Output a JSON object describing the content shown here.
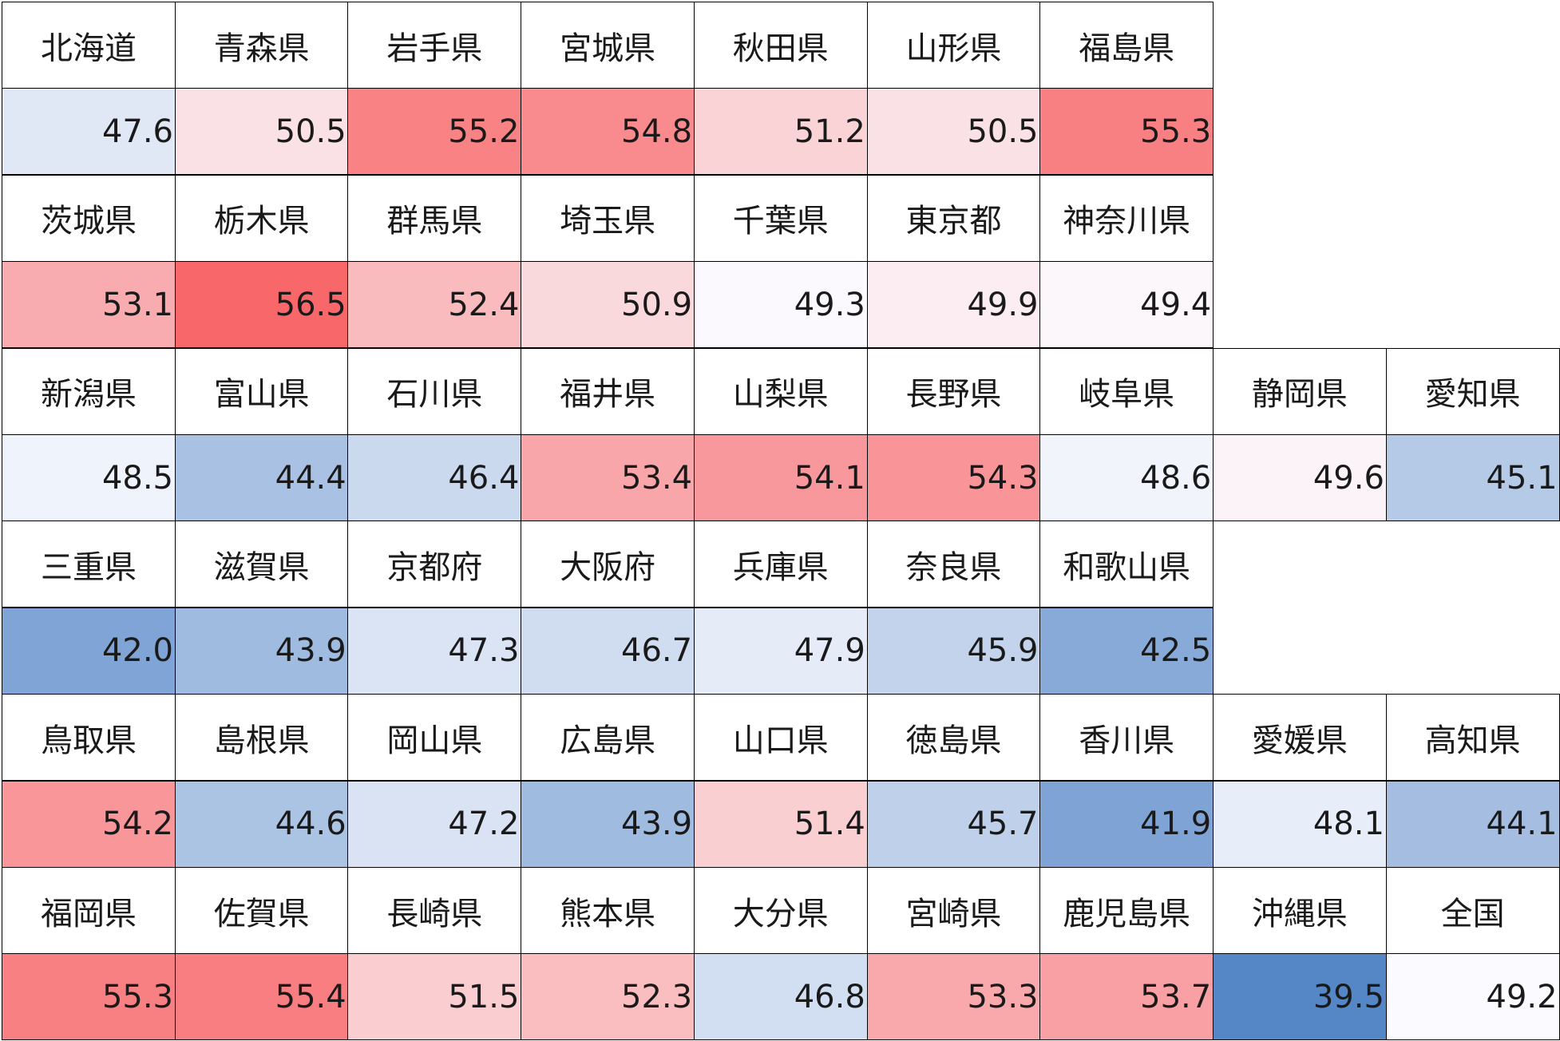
{
  "chart_data": {
    "type": "heatmap",
    "color_scale": {
      "low": "#5586c6",
      "mid": "#fbfbff",
      "high": "#f8686b",
      "midpoint": 49.2
    },
    "rows": [
      [
        {
          "name": "北海道",
          "value": "47.6"
        },
        {
          "name": "青森県",
          "value": "50.5"
        },
        {
          "name": "岩手県",
          "value": "55.2"
        },
        {
          "name": "宮城県",
          "value": "54.8"
        },
        {
          "name": "秋田県",
          "value": "51.2"
        },
        {
          "name": "山形県",
          "value": "50.5"
        },
        {
          "name": "福島県",
          "value": "55.3"
        }
      ],
      [
        {
          "name": "茨城県",
          "value": "53.1"
        },
        {
          "name": "栃木県",
          "value": "56.5"
        },
        {
          "name": "群馬県",
          "value": "52.4"
        },
        {
          "name": "埼玉県",
          "value": "50.9"
        },
        {
          "name": "千葉県",
          "value": "49.3"
        },
        {
          "name": "東京都",
          "value": "49.9"
        },
        {
          "name": "神奈川県",
          "value": "49.4"
        }
      ],
      [
        {
          "name": "新潟県",
          "value": "48.5"
        },
        {
          "name": "富山県",
          "value": "44.4"
        },
        {
          "name": "石川県",
          "value": "46.4"
        },
        {
          "name": "福井県",
          "value": "53.4"
        },
        {
          "name": "山梨県",
          "value": "54.1"
        },
        {
          "name": "長野県",
          "value": "54.3"
        },
        {
          "name": "岐阜県",
          "value": "48.6"
        },
        {
          "name": "静岡県",
          "value": "49.6"
        },
        {
          "name": "愛知県",
          "value": "45.1"
        }
      ],
      [
        {
          "name": "三重県",
          "value": "42.0"
        },
        {
          "name": "滋賀県",
          "value": "43.9"
        },
        {
          "name": "京都府",
          "value": "47.3"
        },
        {
          "name": "大阪府",
          "value": "46.7"
        },
        {
          "name": "兵庫県",
          "value": "47.9"
        },
        {
          "name": "奈良県",
          "value": "45.9"
        },
        {
          "name": "和歌山県",
          "value": "42.5"
        }
      ],
      [
        {
          "name": "鳥取県",
          "value": "54.2"
        },
        {
          "name": "島根県",
          "value": "44.6"
        },
        {
          "name": "岡山県",
          "value": "47.2"
        },
        {
          "name": "広島県",
          "value": "43.9"
        },
        {
          "name": "山口県",
          "value": "51.4"
        },
        {
          "name": "徳島県",
          "value": "45.7"
        },
        {
          "name": "香川県",
          "value": "41.9"
        },
        {
          "name": "愛媛県",
          "value": "48.1"
        },
        {
          "name": "高知県",
          "value": "44.1"
        }
      ],
      [
        {
          "name": "福岡県",
          "value": "55.3"
        },
        {
          "name": "佐賀県",
          "value": "55.4"
        },
        {
          "name": "長崎県",
          "value": "51.5"
        },
        {
          "name": "熊本県",
          "value": "52.3"
        },
        {
          "name": "大分県",
          "value": "46.8"
        },
        {
          "name": "宮崎県",
          "value": "53.3"
        },
        {
          "name": "鹿児島県",
          "value": "53.7"
        },
        {
          "name": "沖縄県",
          "value": "39.5"
        },
        {
          "name": "全国",
          "value": "49.2"
        }
      ]
    ]
  }
}
